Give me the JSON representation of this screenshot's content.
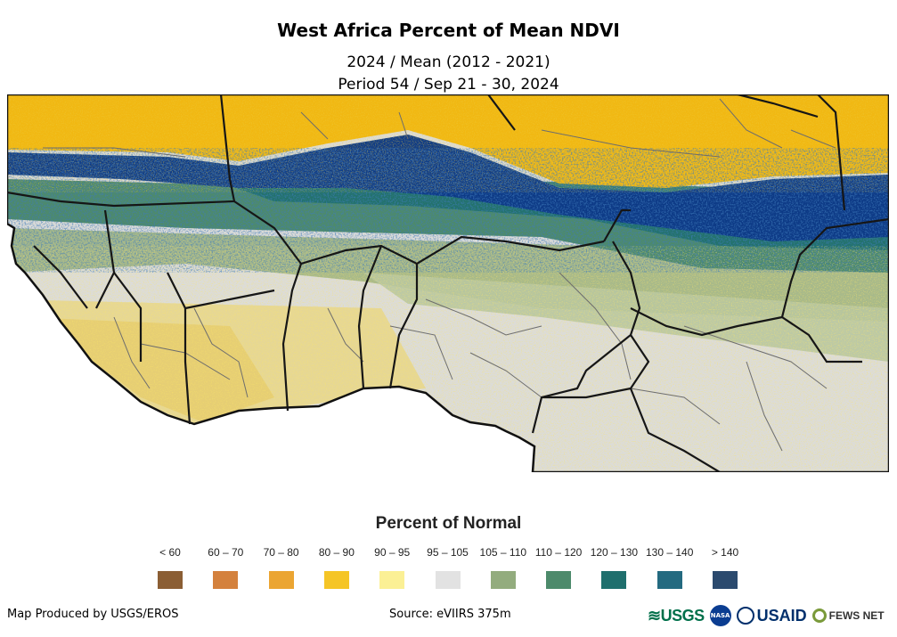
{
  "title": "West Africa Percent of Mean NDVI",
  "subtitle1": "2024 / Mean (2012 - 2021)",
  "subtitle2": "Period 54 / Sep 21 - 30, 2024",
  "legend": {
    "title": "Percent of Normal",
    "items": [
      {
        "label": "< 60",
        "color": "#8b5e34"
      },
      {
        "label": "60 – 70",
        "color": "#d4813d"
      },
      {
        "label": "70 – 80",
        "color": "#eba532"
      },
      {
        "label": "80 – 90",
        "color": "#f5c526"
      },
      {
        "label": "90 – 95",
        "color": "#fbf095"
      },
      {
        "label": "95 – 105",
        "color": "#e2e2e2"
      },
      {
        "label": "105 – 110",
        "color": "#93ac7e"
      },
      {
        "label": "110 – 120",
        "color": "#4d8a6b"
      },
      {
        "label": "120 – 130",
        "color": "#1f6f6d"
      },
      {
        "label": "130 – 140",
        "color": "#246a80"
      },
      {
        "label": "> 140",
        "color": "#2b4a6e"
      }
    ]
  },
  "credit": "Map Produced by USGS/EROS",
  "source": "Source: eVIIRS 375m",
  "logos": {
    "usgs": "≋USGS",
    "nasa": "NASA",
    "usaid": "USAID",
    "fews": "FEWS NET"
  },
  "colors": {
    "sahara": "#f1b812",
    "sahara_dark": "#e5a70d",
    "sahel_blue": "#0d3a86",
    "teal": "#1f6f6d",
    "green": "#4d8a6b",
    "light_green": "#93ac7e",
    "normal_gray": "#dddddd",
    "ocean": "#ffffff",
    "border_country": "#1a1a1a",
    "border_admin": "#6d6d6d"
  }
}
